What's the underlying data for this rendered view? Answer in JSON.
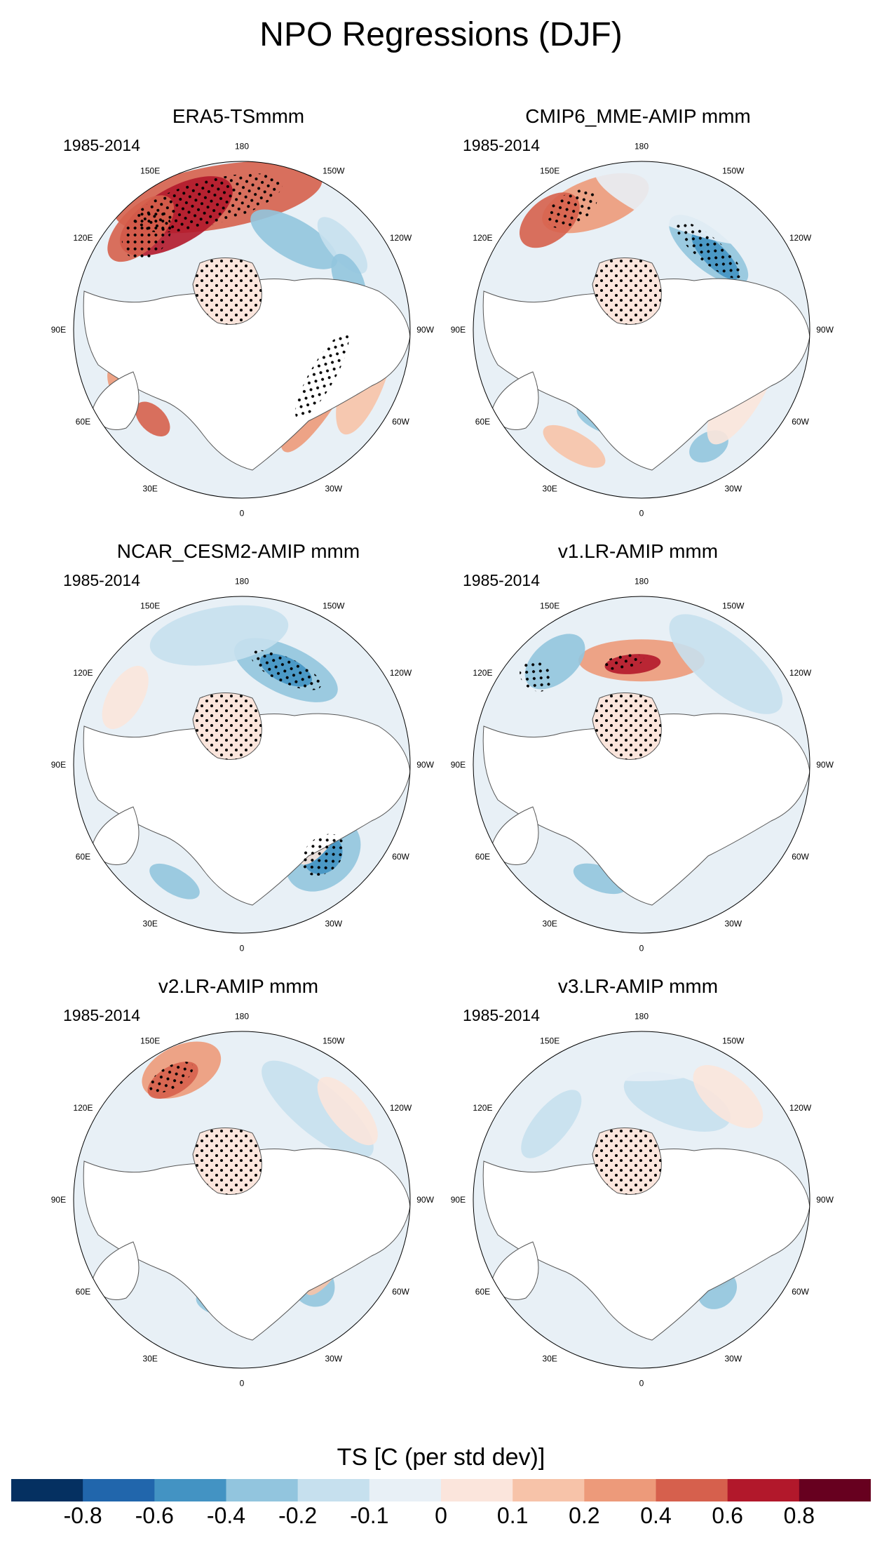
{
  "title": "NPO Regressions (DJF)",
  "panels": [
    {
      "title": "ERA5-TSmmm",
      "period": "1985-2014"
    },
    {
      "title": "CMIP6_MME-AMIP  mmm",
      "period": "1985-2014"
    },
    {
      "title": "NCAR_CESM2-AMIP  mmm",
      "period": "1985-2014"
    },
    {
      "title": "v1.LR-AMIP  mmm",
      "period": "1985-2014"
    },
    {
      "title": "v2.LR-AMIP  mmm",
      "period": "1985-2014"
    },
    {
      "title": "v3.LR-AMIP  mmm",
      "period": "1985-2014"
    }
  ],
  "longitude_labels": [
    "180",
    "150E",
    "120E",
    "90E",
    "60E",
    "30E",
    "0",
    "30W",
    "60W",
    "90W",
    "120W",
    "150W"
  ],
  "colorbar": {
    "title": "TS [C (per std dev)]",
    "labels": [
      "-0.8",
      "-0.6",
      "-0.4",
      "-0.2",
      "-0.1",
      "0",
      "0.1",
      "0.2",
      "0.4",
      "0.6",
      "0.8"
    ],
    "colors": [
      "#053061",
      "#2166ac",
      "#4393c3",
      "#92c5de",
      "#c6e0ee",
      "#e8f0f6",
      "#fbe5dc",
      "#f7c3a9",
      "#ed9a7a",
      "#d6604d",
      "#b2182b",
      "#67001f"
    ]
  },
  "legend_colors": {
    "land": "#ffffff",
    "coast": "#555555",
    "stipple": "#000000",
    "arctic_fill": "#fbe5dc"
  }
}
